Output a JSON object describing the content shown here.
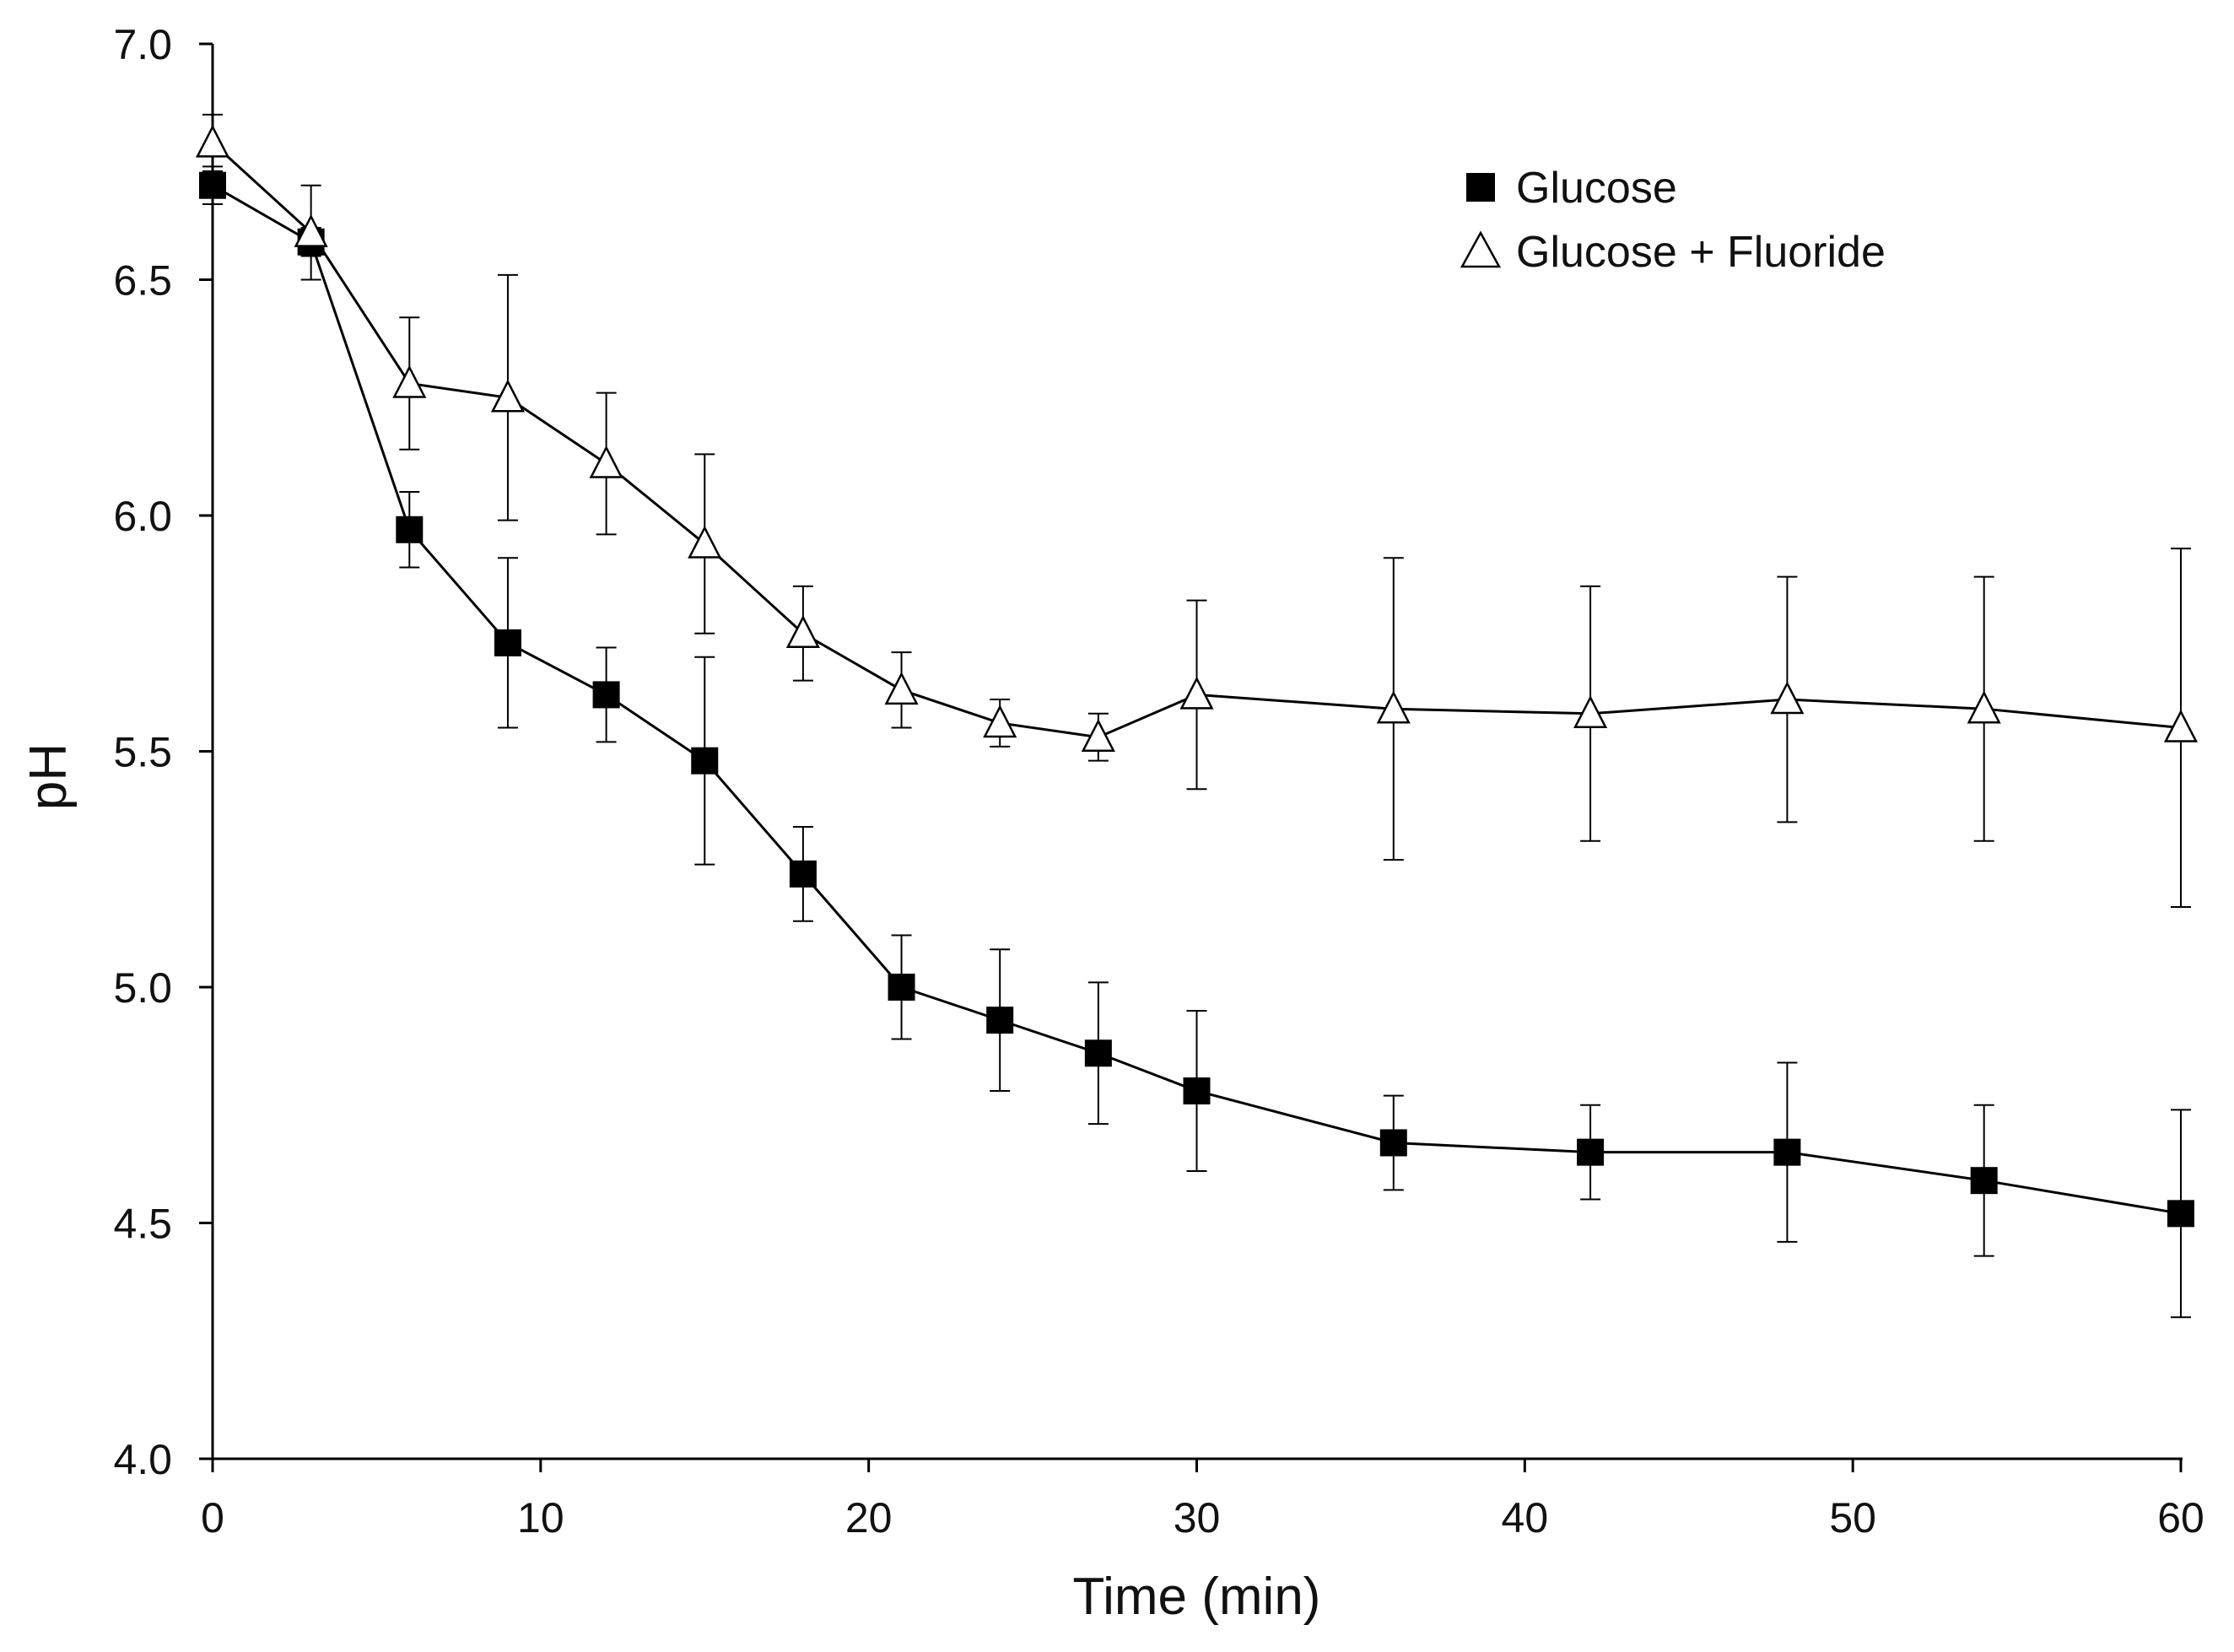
{
  "chart_data": {
    "type": "line",
    "title": "",
    "xlabel": "Time (min)",
    "ylabel": "pH",
    "xlim": [
      0,
      60
    ],
    "ylim": [
      4.0,
      7.0
    ],
    "xticks": [
      0,
      10,
      20,
      30,
      40,
      50,
      60
    ],
    "xtick_labels": [
      "0",
      "10",
      "20",
      "30",
      "40",
      "50",
      "60"
    ],
    "yticks": [
      4.0,
      4.5,
      5.0,
      5.5,
      6.0,
      6.5,
      7.0
    ],
    "ytick_labels": [
      "4.0",
      "4.5",
      "5.0",
      "5.5",
      "6.0",
      "6.5",
      "7.0"
    ],
    "grid": false,
    "legend_position": "top-right",
    "series": [
      {
        "name": "Glucose",
        "marker": "filled-square",
        "color": "#000000",
        "x": [
          0,
          3,
          6,
          9,
          12,
          15,
          18,
          21,
          24,
          27,
          30,
          36,
          42,
          48,
          54,
          60
        ],
        "y": [
          6.7,
          6.58,
          5.97,
          5.73,
          5.62,
          5.48,
          5.24,
          5.0,
          4.93,
          4.86,
          4.78,
          4.67,
          4.65,
          4.65,
          4.59,
          4.52
        ],
        "err": [
          0.04,
          0.03,
          0.08,
          0.18,
          0.1,
          0.22,
          0.1,
          0.11,
          0.15,
          0.15,
          0.17,
          0.1,
          0.1,
          0.19,
          0.16,
          0.22
        ]
      },
      {
        "name": "Glucose + Fluoride",
        "marker": "open-triangle",
        "color": "#000000",
        "x": [
          0,
          3,
          6,
          9,
          12,
          15,
          18,
          21,
          24,
          27,
          30,
          36,
          42,
          48,
          54,
          60
        ],
        "y": [
          6.79,
          6.6,
          6.28,
          6.25,
          6.11,
          5.94,
          5.75,
          5.63,
          5.56,
          5.53,
          5.62,
          5.59,
          5.58,
          5.61,
          5.59,
          5.55
        ],
        "err": [
          0.06,
          0.1,
          0.14,
          0.26,
          0.15,
          0.19,
          0.1,
          0.08,
          0.05,
          0.05,
          0.2,
          0.32,
          0.27,
          0.26,
          0.28,
          0.38
        ]
      }
    ]
  }
}
